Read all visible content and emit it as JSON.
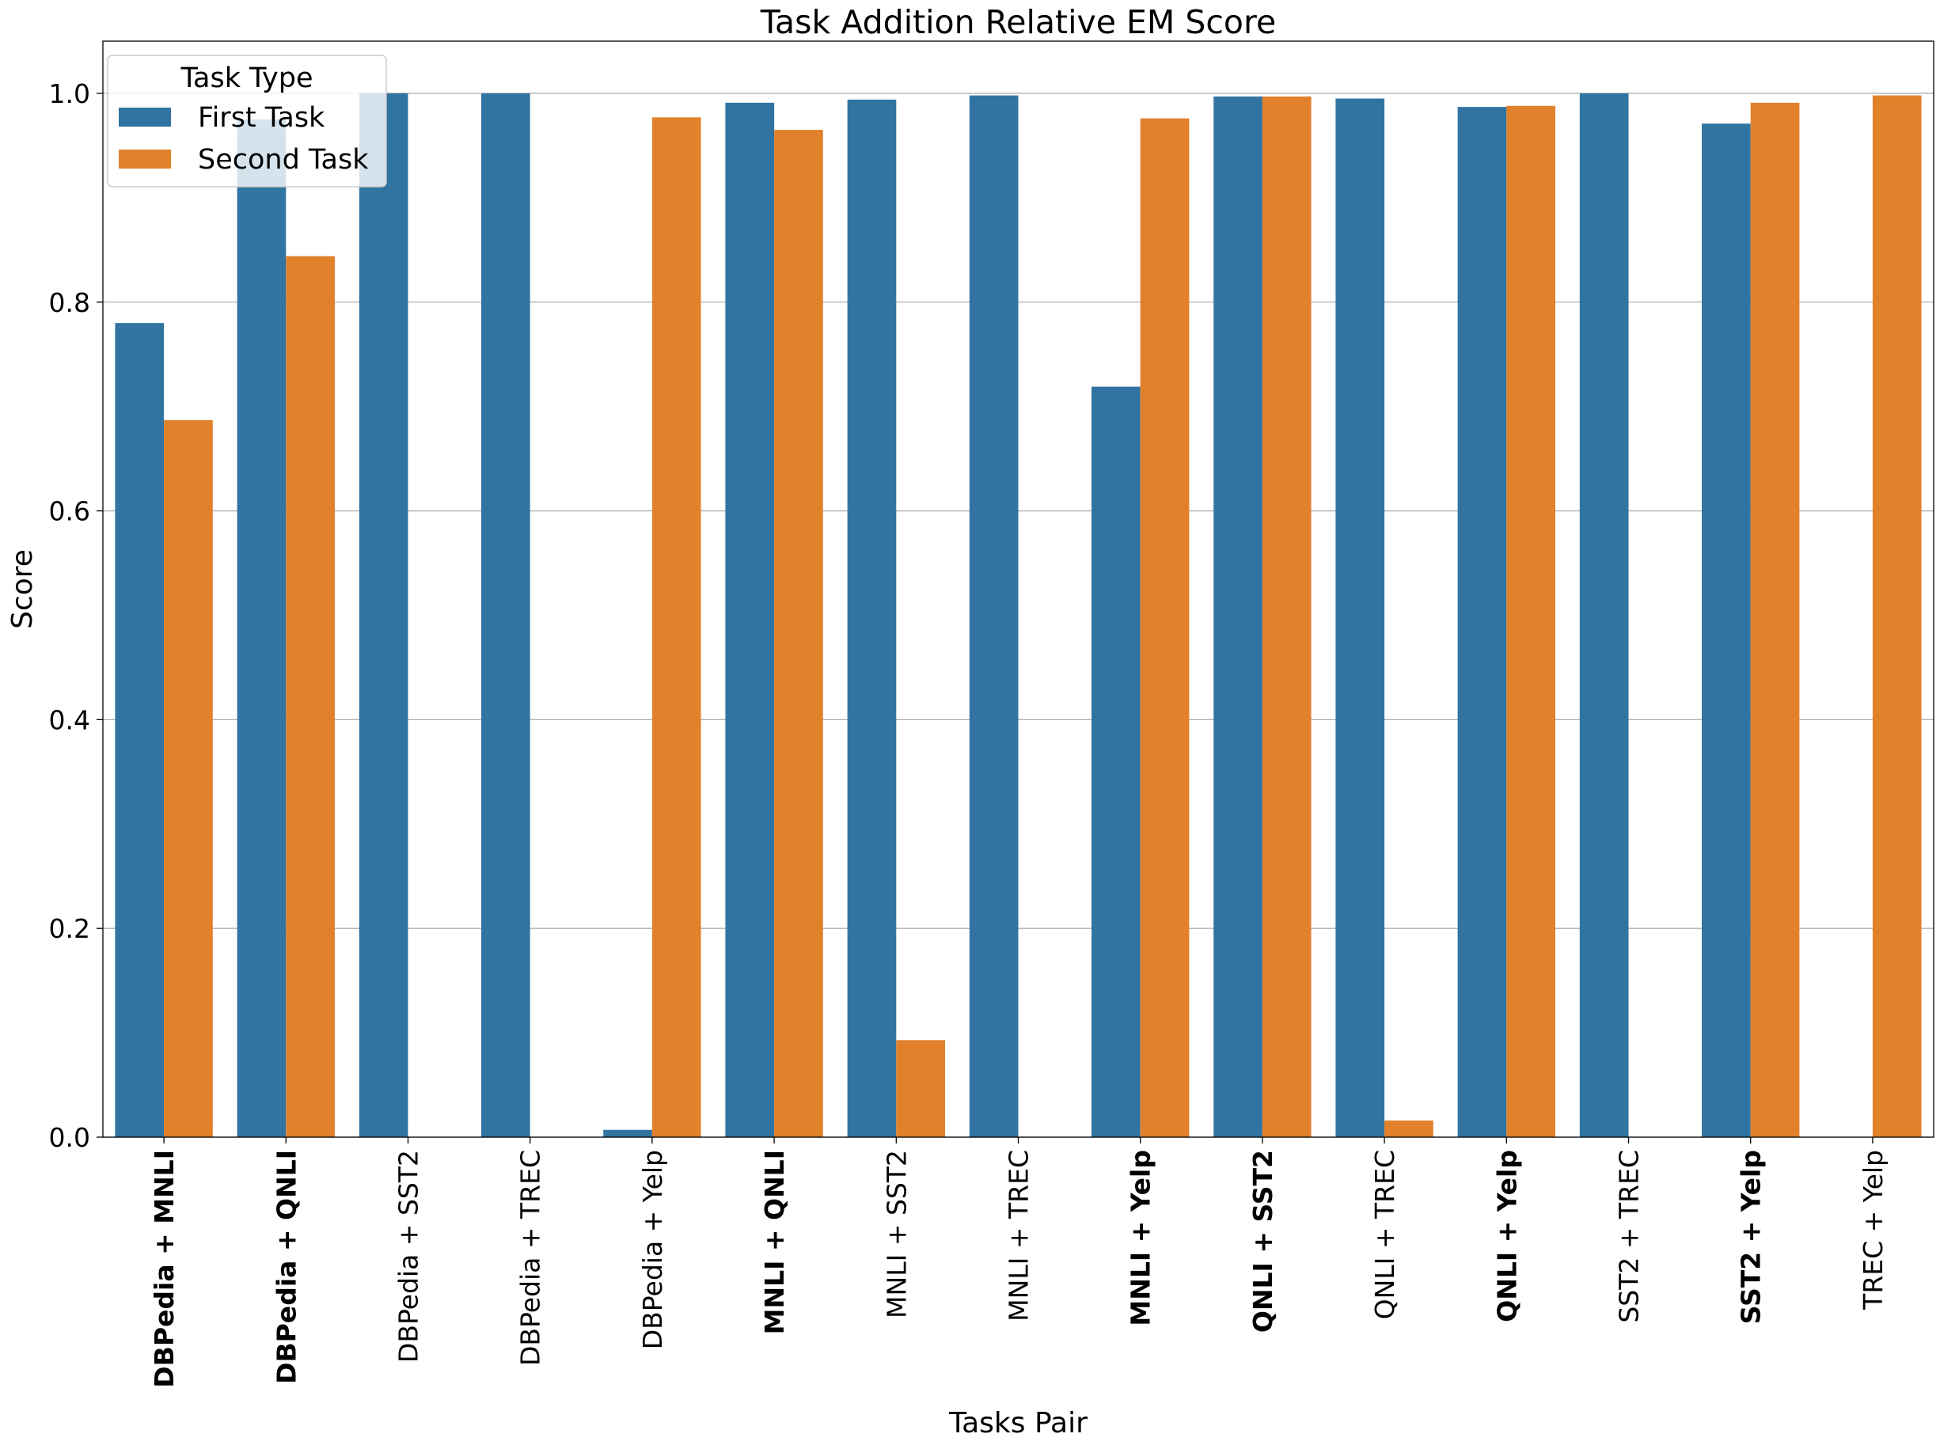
{
  "chart_data": {
    "type": "bar",
    "title": "Task Addition Relative EM Score",
    "xlabel": "Tasks Pair",
    "ylabel": "Score",
    "ylim": [
      0,
      1.05
    ],
    "yticks": [
      "0.0",
      "0.2",
      "0.4",
      "0.6",
      "0.8",
      "1.0"
    ],
    "grid": "horizontal",
    "legend": {
      "title": "Task Type",
      "placement": "top-left"
    },
    "categories": [
      "DBPedia + MNLI",
      "DBPedia + QNLI",
      "DBPedia + SST2",
      "DBPedia + TREC",
      "DBPedia + Yelp",
      "MNLI + QNLI",
      "MNLI + SST2",
      "MNLI + TREC",
      "MNLI + Yelp",
      "QNLI + SST2",
      "QNLI + TREC",
      "QNLI + Yelp",
      "SST2 + TREC",
      "SST2 + Yelp",
      "TREC + Yelp"
    ],
    "bold_categories": [
      true,
      true,
      false,
      false,
      false,
      true,
      false,
      false,
      true,
      true,
      false,
      true,
      false,
      true,
      false
    ],
    "series": [
      {
        "name": "First Task",
        "color": "#3274a1",
        "values": [
          0.78,
          0.975,
          1.0,
          1.0,
          0.007,
          0.991,
          0.994,
          0.998,
          0.719,
          0.997,
          0.995,
          0.987,
          1.0,
          0.971,
          0.0
        ]
      },
      {
        "name": "Second Task",
        "color": "#e1812c",
        "values": [
          0.687,
          0.844,
          0.0,
          0.0,
          0.977,
          0.965,
          0.093,
          0.0,
          0.976,
          0.997,
          0.016,
          0.988,
          0.0,
          0.991,
          0.998
        ]
      }
    ]
  }
}
